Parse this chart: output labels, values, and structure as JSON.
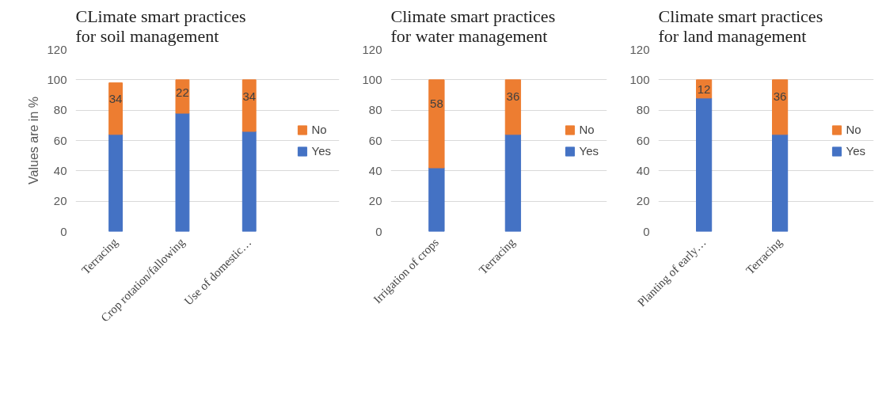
{
  "chart_data": [
    {
      "type": "bar",
      "stacked": true,
      "title": "CLimate smart practices for soil management",
      "ylabel": "Values are in %",
      "categories": [
        "Terracing",
        "Crop rotation/fallowing",
        "Use of domestic…"
      ],
      "series": [
        {
          "name": "Yes",
          "color": "#4472c4",
          "values": [
            64,
            78,
            66
          ]
        },
        {
          "name": "No",
          "color": "#ed7d31",
          "values": [
            34,
            22,
            34
          ],
          "value_labels": [
            "34",
            "22",
            "34"
          ]
        }
      ],
      "ylim": [
        0,
        120
      ],
      "yticks": [
        0,
        20,
        40,
        60,
        80,
        100,
        120
      ],
      "grid": "y",
      "legend": "right"
    },
    {
      "type": "bar",
      "stacked": true,
      "title": "Climate smart practices for water management",
      "categories": [
        "Irrigation of crops",
        "Terracing"
      ],
      "series": [
        {
          "name": "Yes",
          "color": "#4472c4",
          "values": [
            42,
            64
          ]
        },
        {
          "name": "No",
          "color": "#ed7d31",
          "values": [
            58,
            36
          ],
          "value_labels": [
            "58",
            "36"
          ]
        }
      ],
      "ylim": [
        0,
        120
      ],
      "yticks": [
        0,
        20,
        40,
        60,
        80,
        100,
        120
      ],
      "grid": "y",
      "legend": "right"
    },
    {
      "type": "bar",
      "stacked": true,
      "title": "Climate smart practices for land management",
      "categories": [
        "Planting of early…",
        "Terracing"
      ],
      "series": [
        {
          "name": "Yes",
          "color": "#4472c4",
          "values": [
            88,
            64
          ]
        },
        {
          "name": "No",
          "color": "#ed7d31",
          "values": [
            12,
            36
          ],
          "value_labels": [
            "12",
            "36"
          ]
        }
      ],
      "ylim": [
        0,
        120
      ],
      "yticks": [
        0,
        20,
        40,
        60,
        80,
        100,
        120
      ],
      "grid": "y",
      "legend": "right"
    }
  ]
}
